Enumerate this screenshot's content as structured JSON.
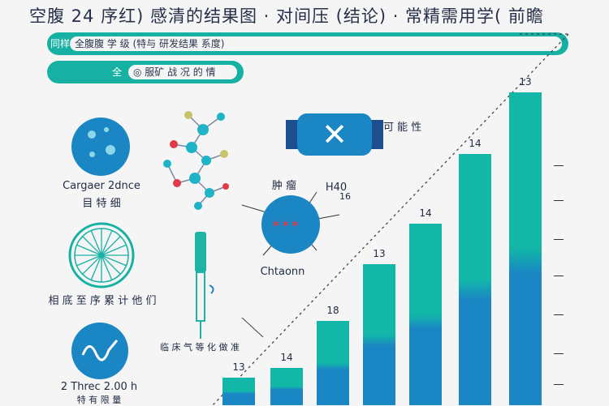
{
  "title": "空腹 24 序红) 感清的结果图 · 对间压 (结论) · 常精需用学( 前瞻",
  "banner1": {
    "lead": "同样",
    "text": "全腹腹 学 级 (特与 研发结果 系度)"
  },
  "banner2": {
    "lead": "全",
    "text": "◎ 服矿 战 况 的 情"
  },
  "panels": {
    "cell": {
      "caption_line1": "Cargaer 2dnce",
      "caption_line2": "目 特 细"
    },
    "wheel": {
      "caption": "相 底 至 序 累 计 他 们"
    },
    "wave": {
      "caption_line1": "2 Threc 2.00 h",
      "caption_line2": "特 有 限 量"
    },
    "molecule": {},
    "pill": {
      "label": "可 能 性"
    },
    "syringe": {
      "caption": "临 床 气 等 化 做 准"
    },
    "tumor": {
      "top_label": "肿 瘤",
      "side_label": "H40",
      "side_value": "16",
      "caption": "Chtaonn"
    }
  },
  "bars": [
    {
      "label": "13",
      "value": 13
    },
    {
      "label": "14",
      "value": 14
    },
    {
      "label": "18",
      "value": 18
    },
    {
      "label": "13",
      "value": 13
    },
    {
      "label": "14",
      "value": 14
    },
    {
      "label": "14",
      "value": 14
    },
    {
      "label": "13",
      "value": 13
    }
  ],
  "colors": {
    "teal": "#17b1a4",
    "blue": "#1a86c4",
    "navy": "#1d4f8f",
    "red": "#e03b4a"
  }
}
